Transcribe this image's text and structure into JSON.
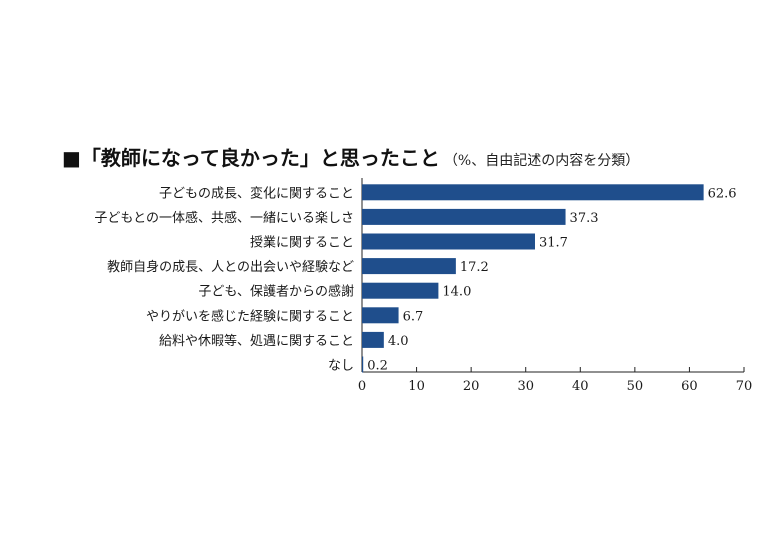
{
  "chart_data": {
    "type": "bar",
    "orientation": "horizontal",
    "title": "■「教師になって良かった」と思ったこと",
    "subtitle": "（%、自由記述の内容を分類）",
    "categories": [
      "子どもの成長、変化に関すること",
      "子どもとの一体感、共感、一緒にいる楽しさ",
      "授業に関すること",
      "教師自身の成長、人との出会いや経験など",
      "子ども、保護者からの感謝",
      "やりがいを感じた経験に関すること",
      "給料や休暇等、処遇に関すること",
      "なし"
    ],
    "values": [
      62.6,
      37.3,
      31.7,
      17.2,
      14.0,
      6.7,
      4.0,
      0.2
    ],
    "value_labels": [
      "62.6",
      "37.3",
      "31.7",
      "17.2",
      "14.0",
      "6.7",
      "4.0",
      "0.2"
    ],
    "xlim": [
      0,
      70
    ],
    "xticks": [
      "0",
      "10",
      "20",
      "30",
      "40",
      "50",
      "60",
      "70"
    ],
    "xlabel": "",
    "ylabel": "",
    "grid": false,
    "legend": "none",
    "bar_color": "#1f4e8c"
  }
}
